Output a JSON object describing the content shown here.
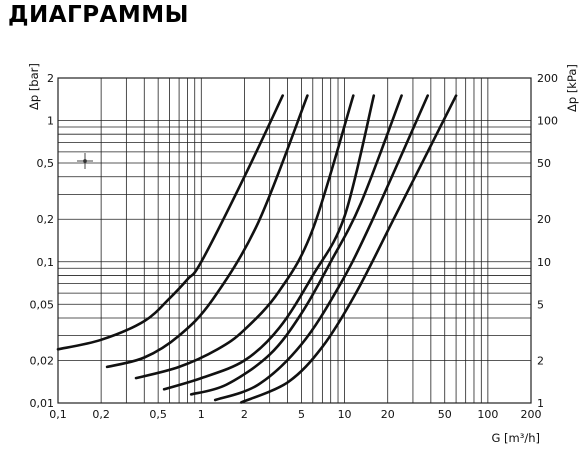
{
  "header": {
    "title": "ДИАГРАММЫ"
  },
  "chart_data": {
    "type": "line",
    "title": "",
    "xlabel": "G [m³/h]",
    "ylabel_left": "Δp [bar]",
    "ylabel_right": "Δp [kPa]",
    "x_scale": "log",
    "y_scale": "log",
    "xlim": [
      0.1,
      200
    ],
    "ylim": [
      0.01,
      2
    ],
    "grid": true,
    "x_ticks": [
      {
        "value": 0.1,
        "label": "0,1"
      },
      {
        "value": 0.2,
        "label": "0,2"
      },
      {
        "value": 0.5,
        "label": "0,5"
      },
      {
        "value": 1,
        "label": "1"
      },
      {
        "value": 2,
        "label": "2"
      },
      {
        "value": 5,
        "label": "5"
      },
      {
        "value": 10,
        "label": "10"
      },
      {
        "value": 20,
        "label": "20"
      },
      {
        "value": 50,
        "label": "50"
      },
      {
        "value": 100,
        "label": "100"
      },
      {
        "value": 200,
        "label": "200"
      }
    ],
    "y_ticks_left": [
      {
        "value": 0.01,
        "label": "0,01"
      },
      {
        "value": 0.02,
        "label": "0,02"
      },
      {
        "value": 0.05,
        "label": "0,05"
      },
      {
        "value": 0.1,
        "label": "0,1"
      },
      {
        "value": 0.2,
        "label": "0,2"
      },
      {
        "value": 0.5,
        "label": "0,5"
      },
      {
        "value": 1,
        "label": "1"
      },
      {
        "value": 2,
        "label": "2"
      }
    ],
    "y_ticks_right": [
      {
        "value": 0.01,
        "label": "1"
      },
      {
        "value": 0.02,
        "label": "2"
      },
      {
        "value": 0.05,
        "label": "5"
      },
      {
        "value": 0.1,
        "label": "10"
      },
      {
        "value": 0.2,
        "label": "20"
      },
      {
        "value": 0.5,
        "label": "50"
      },
      {
        "value": 1,
        "label": "100"
      },
      {
        "value": 2,
        "label": "200"
      }
    ],
    "series": [
      {
        "points": [
          [
            0.1,
            0.024
          ],
          [
            0.2,
            0.028
          ],
          [
            0.4,
            0.038
          ],
          [
            0.6,
            0.055
          ],
          [
            0.8,
            0.075
          ],
          [
            1.0,
            0.1
          ],
          [
            2.0,
            0.4
          ],
          [
            3.7,
            1.5
          ]
        ]
      },
      {
        "points": [
          [
            0.22,
            0.018
          ],
          [
            0.4,
            0.021
          ],
          [
            0.7,
            0.03
          ],
          [
            1.2,
            0.054
          ],
          [
            2.5,
            0.19
          ],
          [
            5.5,
            1.5
          ]
        ]
      },
      {
        "points": [
          [
            0.35,
            0.015
          ],
          [
            0.7,
            0.018
          ],
          [
            1.3,
            0.024
          ],
          [
            2.0,
            0.033
          ],
          [
            3.5,
            0.062
          ],
          [
            6.0,
            0.17
          ],
          [
            11.5,
            1.5
          ]
        ]
      },
      {
        "points": [
          [
            0.55,
            0.0125
          ],
          [
            1.0,
            0.015
          ],
          [
            2.0,
            0.02
          ],
          [
            3.5,
            0.034
          ],
          [
            6.0,
            0.08
          ],
          [
            10.0,
            0.21
          ],
          [
            16.0,
            1.5
          ]
        ]
      },
      {
        "points": [
          [
            0.85,
            0.0115
          ],
          [
            1.5,
            0.0135
          ],
          [
            3.0,
            0.022
          ],
          [
            5.0,
            0.043
          ],
          [
            8.0,
            0.1
          ],
          [
            13.0,
            0.26
          ],
          [
            25.0,
            1.5
          ]
        ]
      },
      {
        "points": [
          [
            1.25,
            0.0105
          ],
          [
            2.5,
            0.0135
          ],
          [
            5.0,
            0.026
          ],
          [
            9.0,
            0.065
          ],
          [
            15.0,
            0.18
          ],
          [
            38.0,
            1.5
          ]
        ]
      },
      {
        "points": [
          [
            1.9,
            0.0101
          ],
          [
            4.0,
            0.014
          ],
          [
            7.0,
            0.025
          ],
          [
            12.0,
            0.06
          ],
          [
            22.0,
            0.2
          ],
          [
            60.0,
            1.5
          ]
        ]
      }
    ],
    "colors": {
      "grid": "#222222",
      "curve": "#111111",
      "marker": "#333333"
    }
  }
}
